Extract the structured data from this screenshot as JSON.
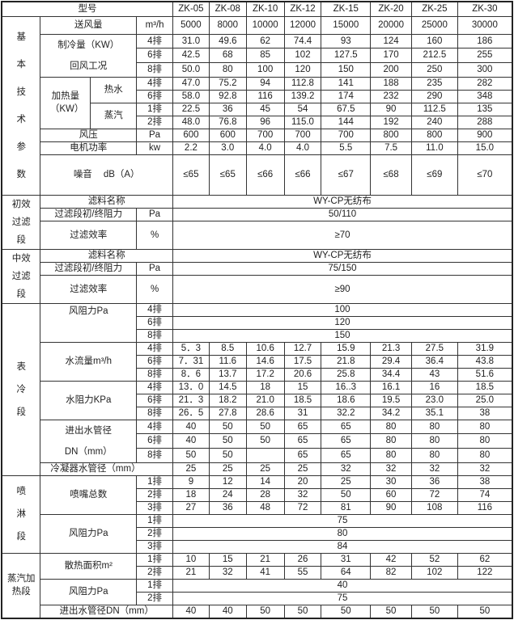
{
  "header": {
    "label": "型号",
    "models": [
      "ZK-05",
      "ZK-08",
      "ZK-10",
      "ZK-12",
      "ZK-15",
      "ZK-20",
      "ZK-25",
      "ZK-30"
    ]
  },
  "basic": {
    "label": "基本技术参数",
    "airflow": {
      "label": "送风量",
      "unit": "m³/h",
      "values": [
        "5000",
        "8000",
        "10000",
        "12000",
        "15000",
        "20000",
        "25000",
        "30000"
      ]
    },
    "cooling": {
      "label1": "制冷量（KW）",
      "label2": "回风工况",
      "rows": [
        {
          "row": "4排",
          "values": [
            "31.0",
            "49.6",
            "62",
            "74.4",
            "93",
            "124",
            "160",
            "186"
          ]
        },
        {
          "row": "6排",
          "values": [
            "42.5",
            "68",
            "85",
            "102",
            "127.5",
            "170",
            "212.5",
            "255"
          ]
        },
        {
          "row": "8排",
          "values": [
            "50.0",
            "80",
            "100",
            "120",
            "150",
            "200",
            "250",
            "300"
          ]
        }
      ]
    },
    "heating": {
      "label": "加热量（KW）",
      "hot_water": {
        "label": "热水",
        "rows": [
          {
            "row": "4排",
            "values": [
              "47.0",
              "75.2",
              "94",
              "112.8",
              "141",
              "188",
              "235",
              "282"
            ]
          },
          {
            "row": "6排",
            "values": [
              "58.0",
              "92.8",
              "116",
              "139.2",
              "174",
              "232",
              "290",
              "348"
            ]
          }
        ]
      },
      "steam": {
        "label": "蒸汽",
        "rows": [
          {
            "row": "1排",
            "values": [
              "22.5",
              "36",
              "45",
              "54",
              "67.5",
              "90",
              "112.5",
              "135"
            ]
          },
          {
            "row": "2排",
            "values": [
              "48.0",
              "76.8",
              "96",
              "115.0",
              "144",
              "192",
              "240",
              "288"
            ]
          }
        ]
      }
    },
    "pressure": {
      "label": "风压",
      "unit": "Pa",
      "values": [
        "600",
        "600",
        "700",
        "700",
        "700",
        "800",
        "800",
        "900"
      ]
    },
    "motor": {
      "label": "电机功率",
      "unit": "kw",
      "values": [
        "2.2",
        "3.0",
        "4.0",
        "4.0",
        "5.5",
        "7.5",
        "11.0",
        "15.0"
      ]
    },
    "noise": {
      "label": "噪音",
      "unit": "dB（A）",
      "values": [
        "≤65",
        "≤65",
        "≤66",
        "≤66",
        "≤67",
        "≤68",
        "≤69",
        "≤70"
      ]
    }
  },
  "primary_filter": {
    "label": "初效过滤段",
    "media": {
      "label": "滤料名称",
      "value": "WY-CP无纺布"
    },
    "resistance": {
      "label": "过滤段初/终阻力",
      "unit": "Pa",
      "value": "50/110"
    },
    "efficiency": {
      "label": "过滤效率",
      "unit": "%",
      "value": "≥70"
    }
  },
  "medium_filter": {
    "label": "中效过滤段",
    "media": {
      "label": "滤料名称",
      "value": "WY-CP无纺布"
    },
    "resistance": {
      "label": "过滤段初/终阻力",
      "unit": "Pa",
      "value": "75/150"
    },
    "efficiency": {
      "label": "过滤效率",
      "unit": "%",
      "value": "≥90"
    }
  },
  "coil": {
    "label": "表冷段",
    "air_resistance": {
      "label": "风阻力Pa",
      "rows": [
        {
          "row": "4排",
          "value": "100"
        },
        {
          "row": "6排",
          "value": "120"
        },
        {
          "row": "8排",
          "value": "150"
        }
      ]
    },
    "water_flow": {
      "label": "水流量m³/h",
      "rows": [
        {
          "row": "4排",
          "values": [
            "5．3",
            "8.5",
            "10.6",
            "12.7",
            "15.9",
            "21.3",
            "27.5",
            "31.9"
          ]
        },
        {
          "row": "6排",
          "values": [
            "7．31",
            "11.6",
            "14.6",
            "17.5",
            "21.8",
            "29.4",
            "36.4",
            "43.8"
          ]
        },
        {
          "row": "8排",
          "values": [
            "8．6",
            "13.7",
            "17.2",
            "20.6",
            "25.8",
            "34.4",
            "43",
            "51.6"
          ]
        }
      ]
    },
    "water_resistance": {
      "label": "水阻力KPa",
      "rows": [
        {
          "row": "4排",
          "values": [
            "13．0",
            "14.5",
            "18",
            "15",
            "16..3",
            "16.1",
            "16",
            "18.5"
          ]
        },
        {
          "row": "6排",
          "values": [
            "21．3",
            "18.2",
            "21.0",
            "18.5",
            "18.6",
            "19.5",
            "23.0",
            "25.0"
          ]
        },
        {
          "row": "8排",
          "values": [
            "26．5",
            "27.8",
            "28.6",
            "31",
            "32.2",
            "34.2",
            "35.1",
            "38"
          ]
        }
      ]
    },
    "pipe": {
      "label1": "进出水管径",
      "label2": "DN（mm）",
      "rows": [
        {
          "row": "4排",
          "values": [
            "40",
            "50",
            "50",
            "65",
            "65",
            "80",
            "80",
            "80"
          ]
        },
        {
          "row": "6排",
          "values": [
            "40",
            "50",
            "50",
            "65",
            "65",
            "80",
            "80",
            "80"
          ]
        },
        {
          "row": "8排",
          "values": [
            "50",
            "50",
            "",
            "65",
            "65",
            "80",
            "80",
            "80"
          ]
        }
      ]
    },
    "condenser": {
      "label": "冷凝器水管径（mm）",
      "values": [
        "25",
        "25",
        "25",
        "25",
        "32",
        "32",
        "32",
        "32"
      ]
    }
  },
  "spray": {
    "label": "喷淋段",
    "nozzles": {
      "label": "喷嘴总数",
      "rows": [
        {
          "row": "1排",
          "values": [
            "9",
            "12",
            "14",
            "20",
            "25",
            "30",
            "36",
            "38"
          ]
        },
        {
          "row": "2排",
          "values": [
            "18",
            "24",
            "28",
            "32",
            "50",
            "60",
            "72",
            "74"
          ]
        },
        {
          "row": "3排",
          "values": [
            "27",
            "36",
            "48",
            "72",
            "81",
            "90",
            "108",
            "116"
          ]
        }
      ]
    },
    "air_resistance": {
      "label": "风阻力Pa",
      "rows": [
        {
          "row": "1排",
          "value": "75"
        },
        {
          "row": "2排",
          "value": "80"
        },
        {
          "row": "3排",
          "value": "84"
        }
      ]
    }
  },
  "steam_heating": {
    "label": "蒸汽加热段",
    "area": {
      "label": "散热面积m²",
      "rows": [
        {
          "row": "1排",
          "values": [
            "10",
            "15",
            "21",
            "26",
            "31",
            "42",
            "52",
            "62"
          ]
        },
        {
          "row": "2排",
          "values": [
            "21",
            "32",
            "41",
            "55",
            "64",
            "82",
            "102",
            "122"
          ]
        }
      ]
    },
    "air_resistance": {
      "label": "风阻力Pa",
      "rows": [
        {
          "row": "1排",
          "value": "40"
        },
        {
          "row": "2排",
          "value": "75"
        }
      ]
    },
    "pipe": {
      "label": "进出水管径DN（mm）",
      "values": [
        "40",
        "40",
        "50",
        "50",
        "50",
        "50",
        "50",
        "50"
      ]
    }
  }
}
